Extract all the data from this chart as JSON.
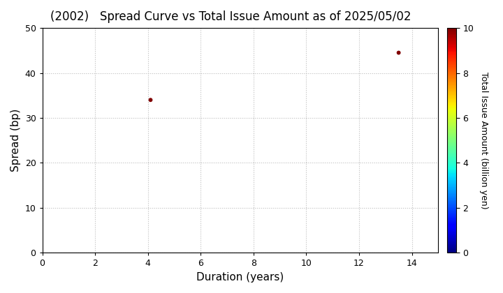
{
  "title": "(2002)   Spread Curve vs Total Issue Amount as of 2025/05/02",
  "xlabel": "Duration (years)",
  "ylabel": "Spread (bp)",
  "colorbar_label": "Total Issue Amount (billion yen)",
  "xlim": [
    0,
    15
  ],
  "ylim": [
    0,
    50
  ],
  "xticks": [
    0,
    2,
    4,
    6,
    8,
    10,
    12,
    14
  ],
  "yticks": [
    0,
    10,
    20,
    30,
    40,
    50
  ],
  "colorbar_ticks": [
    0,
    2,
    4,
    6,
    8,
    10
  ],
  "colorbar_lim": [
    0,
    10
  ],
  "points": [
    {
      "duration": 4.1,
      "spread": 34.0,
      "amount": 10.0
    },
    {
      "duration": 13.5,
      "spread": 44.5,
      "amount": 10.0
    }
  ],
  "marker_size": 18,
  "background_color": "#ffffff",
  "grid_color": "#bbbbbb",
  "grid_style": ":"
}
